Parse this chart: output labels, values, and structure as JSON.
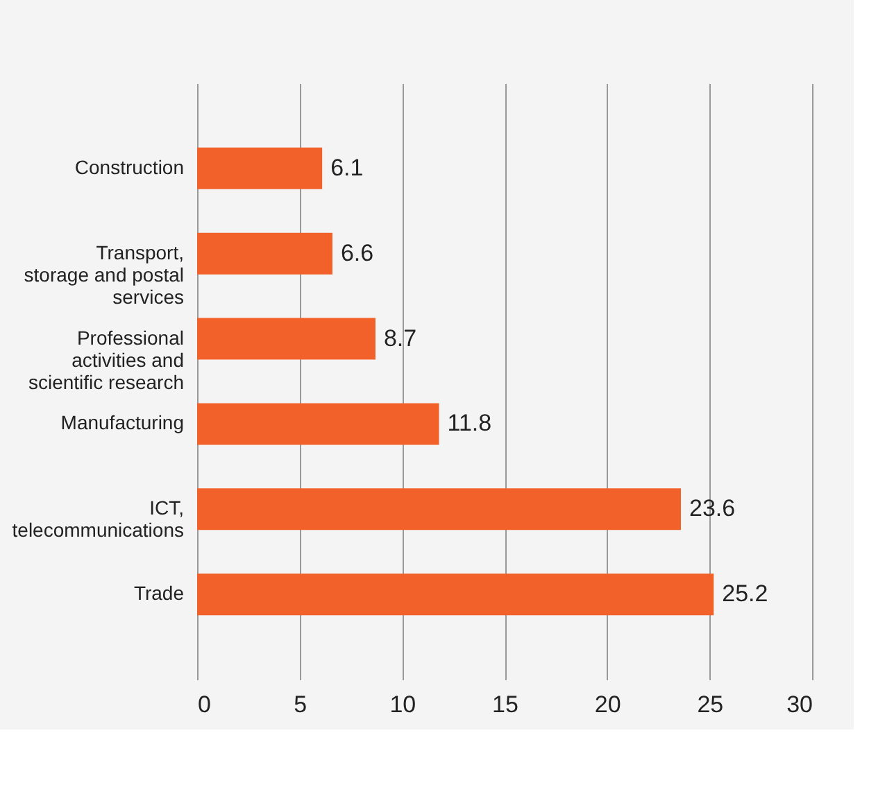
{
  "chart_data": {
    "type": "bar",
    "orientation": "horizontal",
    "categories": [
      "Construction",
      "Transport,\nstorage and postal\nservices",
      "Professional\nactivities and\nscientific research",
      "Manufacturing",
      "ICT,\ntelecommunications",
      "Trade"
    ],
    "values": [
      6.1,
      6.6,
      8.7,
      11.8,
      23.6,
      25.2
    ],
    "color": "#f26129",
    "xlim": [
      0,
      30
    ],
    "xticks": [
      0,
      5,
      10,
      15,
      20,
      25,
      30
    ],
    "grid": "x",
    "data_labels": true
  }
}
